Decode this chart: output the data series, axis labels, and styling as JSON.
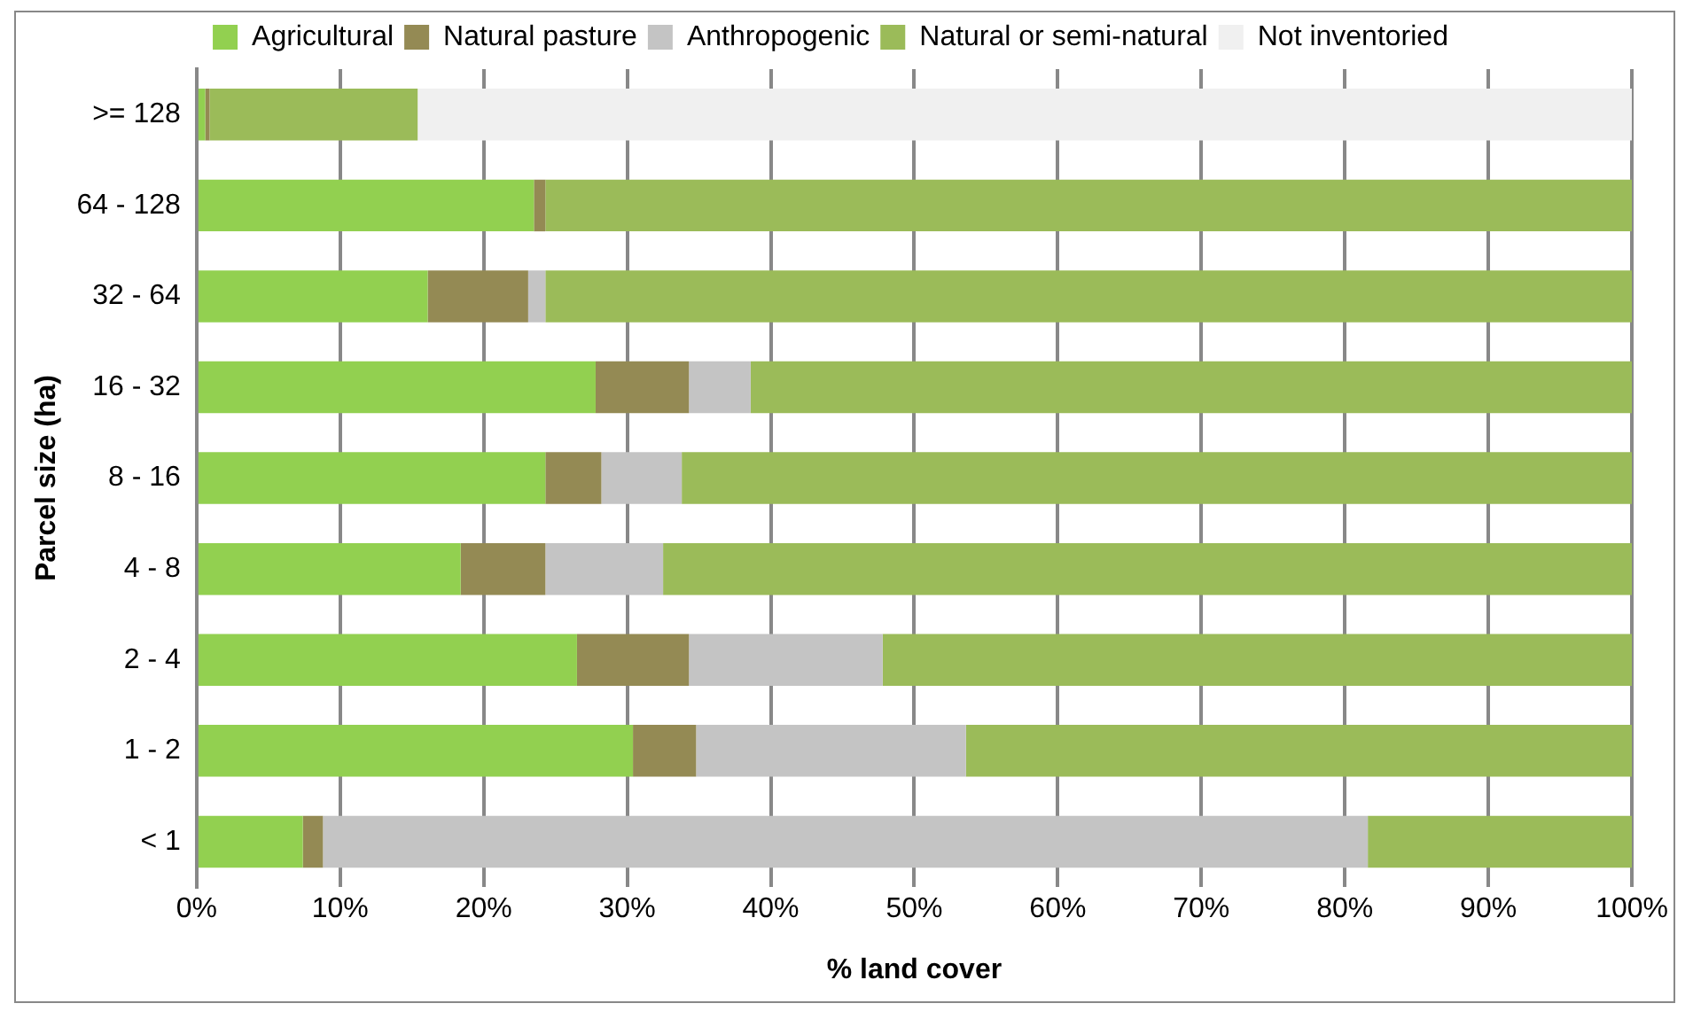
{
  "chart_data": {
    "type": "bar",
    "orientation": "horizontal",
    "stacked": true,
    "xlabel": "% land cover",
    "ylabel": "Parcel size (ha)",
    "categories": [
      ">= 128",
      "64 - 128",
      "32 - 64",
      "16 - 32",
      "8 - 16",
      "4 - 8",
      "2 - 4",
      "1 - 2",
      "< 1"
    ],
    "series": [
      {
        "name": "Agricultural",
        "color": "#92d050",
        "values": [
          0.6,
          23.5,
          16.1,
          27.8,
          24.3,
          18.4,
          26.5,
          30.4,
          7.4
        ]
      },
      {
        "name": "Natural pasture",
        "color": "#948a54",
        "values": [
          0.3,
          0.8,
          7.0,
          6.5,
          3.9,
          5.9,
          7.8,
          4.4,
          1.4
        ]
      },
      {
        "name": "Anthropogenic",
        "color": "#c4c4c4",
        "values": [
          0,
          0,
          1.2,
          4.3,
          5.6,
          8.2,
          13.5,
          18.8,
          72.8
        ]
      },
      {
        "name": "Natural or semi-natural",
        "color": "#9bbb59",
        "values": [
          14.5,
          75.7,
          75.7,
          61.4,
          66.2,
          67.5,
          52.2,
          46.4,
          18.4
        ]
      },
      {
        "name": "Not inventoried",
        "color": "#f0f0f0",
        "values": [
          84.6,
          0,
          0,
          0,
          0,
          0,
          0,
          0,
          0
        ]
      }
    ],
    "xlim": [
      0,
      100
    ],
    "xticks": [
      {
        "value": 0,
        "label": "0%"
      },
      {
        "value": 10,
        "label": "10%"
      },
      {
        "value": 20,
        "label": "20%"
      },
      {
        "value": 30,
        "label": "30%"
      },
      {
        "value": 40,
        "label": "40%"
      },
      {
        "value": 50,
        "label": "50%"
      },
      {
        "value": 60,
        "label": "60%"
      },
      {
        "value": 70,
        "label": "70%"
      },
      {
        "value": 80,
        "label": "80%"
      },
      {
        "value": 90,
        "label": "90%"
      },
      {
        "value": 100,
        "label": "100%"
      }
    ],
    "grid": "x",
    "legend": "top"
  }
}
